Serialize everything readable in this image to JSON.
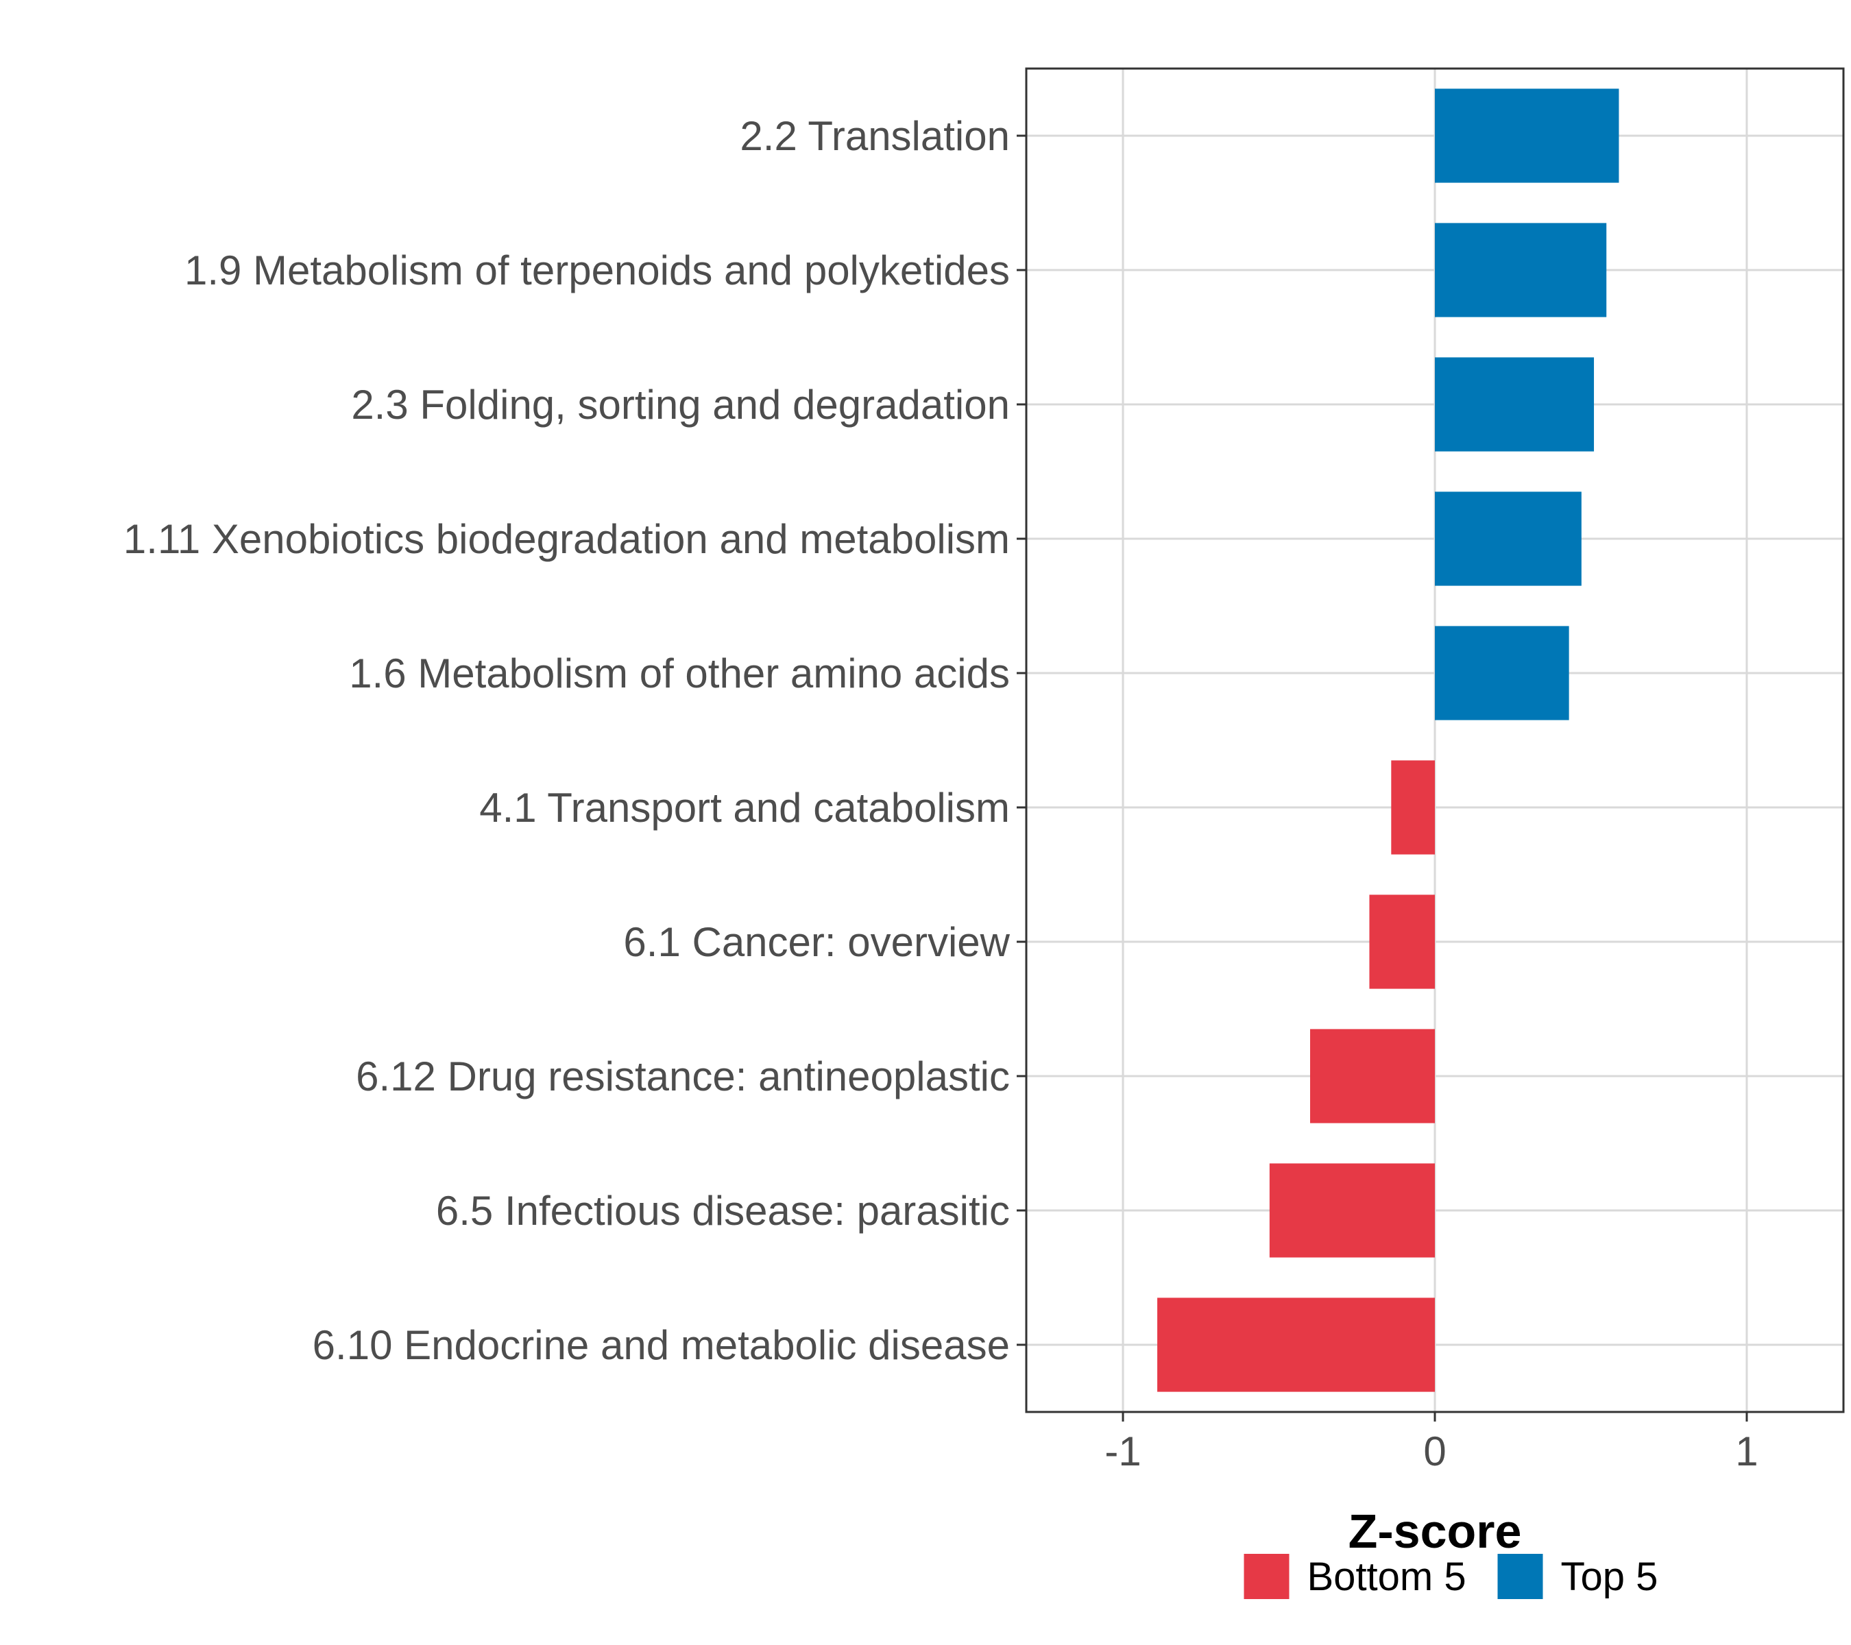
{
  "chart_data": {
    "type": "bar",
    "orientation": "horizontal",
    "categories": [
      "2.2 Translation",
      "1.9 Metabolism of terpenoids and polyketides",
      "2.3 Folding, sorting and degradation",
      "1.11 Xenobiotics biodegradation and metabolism",
      "1.6 Metabolism of other amino acids",
      "4.1 Transport and catabolism",
      "6.1 Cancer: overview",
      "6.12 Drug resistance: antineoplastic",
      "6.5 Infectious disease: parasitic",
      "6.10 Endocrine and metabolic disease"
    ],
    "values": [
      0.59,
      0.55,
      0.51,
      0.47,
      0.43,
      -0.14,
      -0.21,
      -0.4,
      -0.53,
      -0.89
    ],
    "groups": [
      "Top 5",
      "Top 5",
      "Top 5",
      "Top 5",
      "Top 5",
      "Bottom 5",
      "Bottom 5",
      "Bottom 5",
      "Bottom 5",
      "Bottom 5"
    ],
    "xlabel": "Z-score",
    "ylabel": "",
    "xlim": [
      -1.31,
      1.31
    ],
    "xticks": [
      -1,
      0,
      1
    ],
    "xtick_labels": [
      "-1",
      "0",
      "1"
    ],
    "grid": true,
    "legend": {
      "placement": "bottom",
      "items": [
        {
          "label": "Bottom 5",
          "color": "#E63946"
        },
        {
          "label": "Top 5",
          "color": "#0077B6"
        }
      ]
    }
  },
  "colors": {
    "Top 5": "#0077B6",
    "Bottom 5": "#E63946",
    "grid": "#d9d9d9",
    "panel_border": "#333333",
    "tick_text": "#4d4d4d"
  }
}
